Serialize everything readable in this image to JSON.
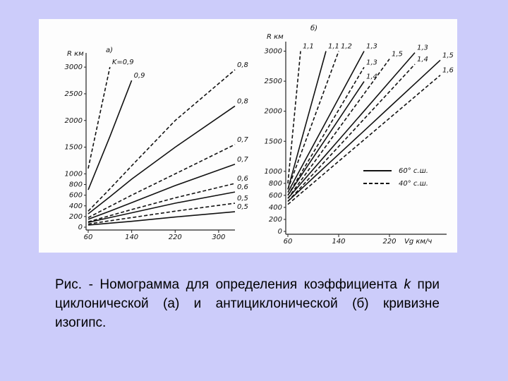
{
  "chart_data": [
    {
      "type": "line",
      "panel": "а)",
      "ylabel": "R км",
      "x": [
        60,
        100,
        140,
        220,
        330
      ],
      "xlim": [
        60,
        330
      ],
      "ylim": [
        0,
        3200
      ],
      "xticks": [
        60,
        140,
        220,
        300
      ],
      "yticks": [
        0,
        200,
        400,
        600,
        800,
        1000,
        1500,
        2000,
        2500,
        3000
      ],
      "series": [
        {
          "name": "K=0,9",
          "color": "#111111",
          "dash": true,
          "values": [
            1100,
            3000,
            null,
            null,
            null
          ]
        },
        {
          "name": "0,9",
          "color": "#111111",
          "dash": false,
          "values": [
            700,
            1700,
            2750,
            null,
            null
          ]
        },
        {
          "name": "0,8",
          "color": "#111111",
          "dash": true,
          "values": [
            300,
            720,
            1150,
            2000,
            2950
          ]
        },
        {
          "name": "0,8",
          "color": "#111111",
          "dash": false,
          "values": [
            250,
            570,
            900,
            1500,
            2270
          ]
        },
        {
          "name": "0,7",
          "color": "#111111",
          "dash": true,
          "values": [
            180,
            390,
            600,
            1000,
            1550
          ]
        },
        {
          "name": "0,7",
          "color": "#111111",
          "dash": false,
          "values": [
            150,
            300,
            460,
            780,
            1180
          ]
        },
        {
          "name": "0,6",
          "color": "#111111",
          "dash": true,
          "values": [
            100,
            215,
            330,
            550,
            820
          ]
        },
        {
          "name": "0,6",
          "color": "#111111",
          "dash": false,
          "values": [
            90,
            180,
            270,
            450,
            660
          ]
        },
        {
          "name": "0,5",
          "color": "#111111",
          "dash": true,
          "values": [
            60,
            120,
            180,
            300,
            450
          ]
        },
        {
          "name": "0,5",
          "color": "#111111",
          "dash": false,
          "values": [
            40,
            75,
            110,
            190,
            290
          ]
        }
      ]
    },
    {
      "type": "line",
      "panel": "б)",
      "ylabel": "R км",
      "xlabel": "Vg км/ч",
      "x": [
        60,
        80,
        100,
        120,
        140,
        180,
        220,
        260,
        300
      ],
      "xlim": [
        60,
        310
      ],
      "ylim": [
        0,
        3100
      ],
      "xticks": [
        60,
        140,
        220
      ],
      "yticks": [
        0,
        200,
        400,
        600,
        800,
        1000,
        1500,
        2000,
        2500,
        3000
      ],
      "legend": [
        {
          "label": "60° с.ш.",
          "dash": false
        },
        {
          "label": "40° с.ш.",
          "dash": true
        }
      ],
      "series": [
        {
          "name": "1,1",
          "color": "#111111",
          "dash": true,
          "values": [
            800,
            3000,
            null,
            null,
            null,
            null,
            null,
            null,
            null
          ]
        },
        {
          "name": "1,1",
          "color": "#111111",
          "dash": false,
          "values": [
            700,
            1467,
            2233,
            3000,
            null,
            null,
            null,
            null,
            null
          ]
        },
        {
          "name": "1,2",
          "color": "#111111",
          "dash": true,
          "values": [
            700,
            1275,
            1850,
            2425,
            3000,
            null,
            null,
            null,
            null
          ]
        },
        {
          "name": "1,3",
          "color": "#111111",
          "dash": false,
          "values": [
            650,
            1042,
            1433,
            1825,
            2217,
            3000,
            null,
            null,
            null
          ]
        },
        {
          "name": "1,3",
          "color": "#111111",
          "dash": true,
          "values": [
            600,
            956,
            1311,
            1667,
            2022,
            2733,
            null,
            null,
            null
          ]
        },
        {
          "name": "1,4",
          "color": "#111111",
          "dash": false,
          "values": [
            600,
            916,
            1232,
            1547,
            1863,
            2495,
            null,
            null,
            null
          ]
        },
        {
          "name": "1,5",
          "color": "#111111",
          "dash": true,
          "values": [
            550,
            840,
            1130,
            1420,
            1710,
            2290,
            2870,
            null,
            null
          ]
        },
        {
          "name": "1,3",
          "color": "#111111",
          "dash": false,
          "values": [
            550,
            792,
            1035,
            1277,
            1520,
            2005,
            2490,
            2975,
            null
          ]
        },
        {
          "name": "1,4",
          "color": "#111111",
          "dash": true,
          "values": [
            500,
            728,
            957,
            1185,
            1413,
            1870,
            2326,
            2783,
            null
          ]
        },
        {
          "name": "1,5",
          "color": "#111111",
          "dash": false,
          "values": [
            500,
            696,
            892,
            1088,
            1283,
            1675,
            2067,
            2458,
            2850
          ]
        },
        {
          "name": "1,6",
          "color": "#111111",
          "dash": true,
          "values": [
            450,
            629,
            808,
            987,
            1167,
            1525,
            1883,
            2242,
            2600
          ]
        }
      ]
    }
  ],
  "caption": [
    "Рис.   -   Номограмма для определения коэффициента ",
    "k",
    " при циклонической (а) и антициклонической (б) кривизне изогипс."
  ]
}
